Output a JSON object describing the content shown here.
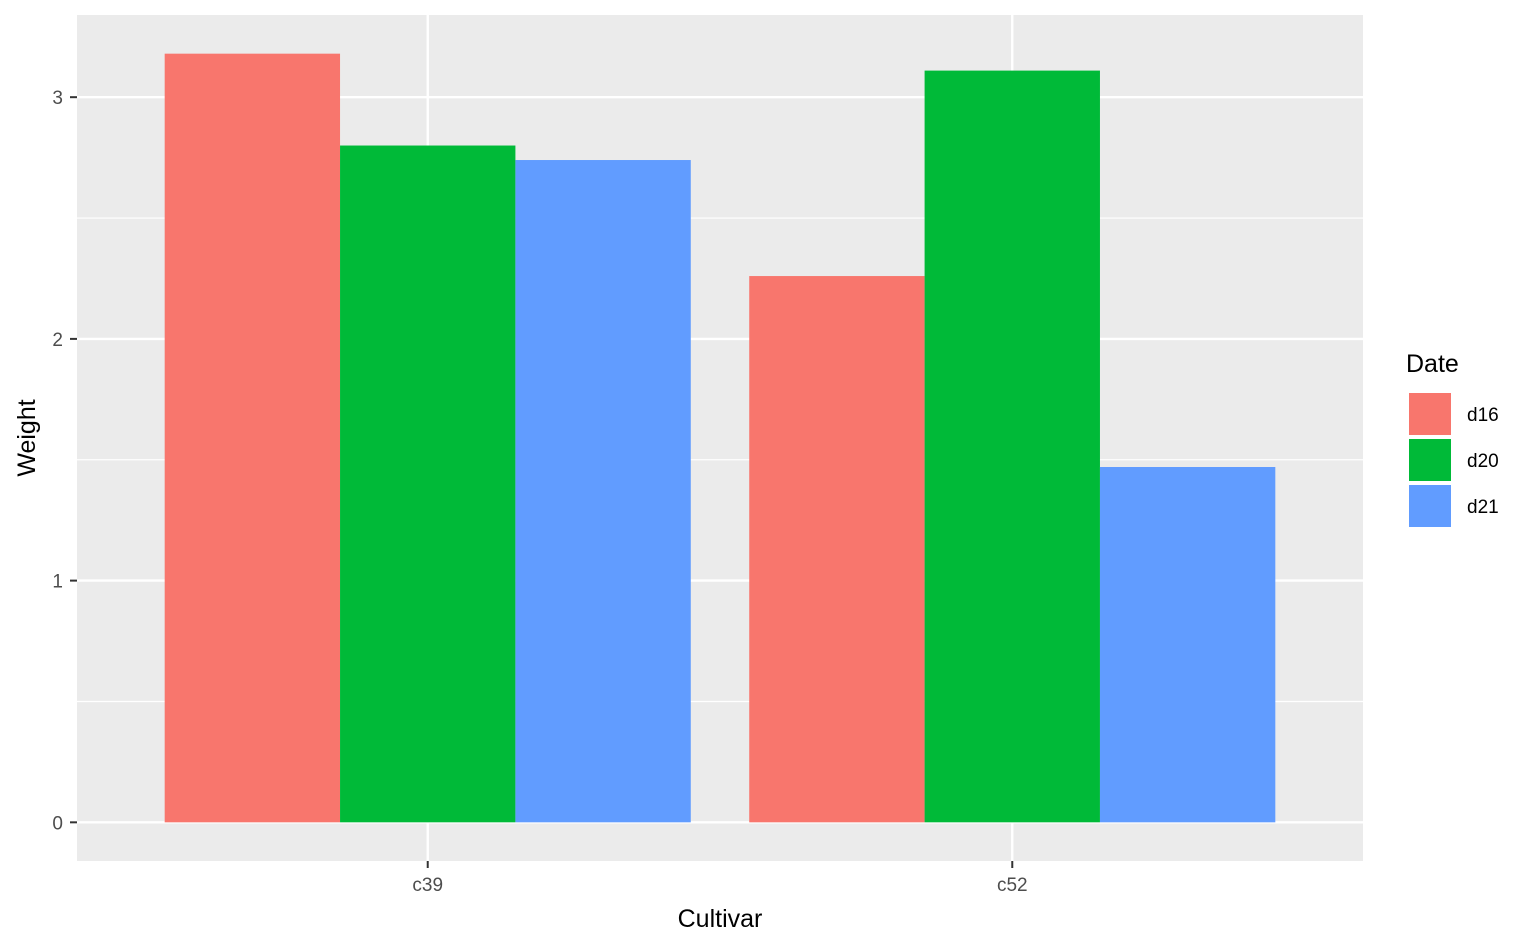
{
  "chart_data": {
    "type": "bar",
    "categories": [
      "c39",
      "c52"
    ],
    "series": [
      {
        "name": "d16",
        "values": [
          3.18,
          2.26
        ],
        "color": "#F8766D"
      },
      {
        "name": "d20",
        "values": [
          2.8,
          3.11
        ],
        "color": "#00BA38"
      },
      {
        "name": "d21",
        "values": [
          2.74,
          1.47
        ],
        "color": "#619CFF"
      }
    ],
    "xlabel": "Cultivar",
    "ylabel": "Weight",
    "ylim": [
      -0.16,
      3.34
    ],
    "yticks": [
      "0",
      "1",
      "2",
      "3"
    ],
    "grid": true,
    "legend_title": "Date",
    "legend_placement": "right",
    "panel_background": "#EBEBEB"
  }
}
